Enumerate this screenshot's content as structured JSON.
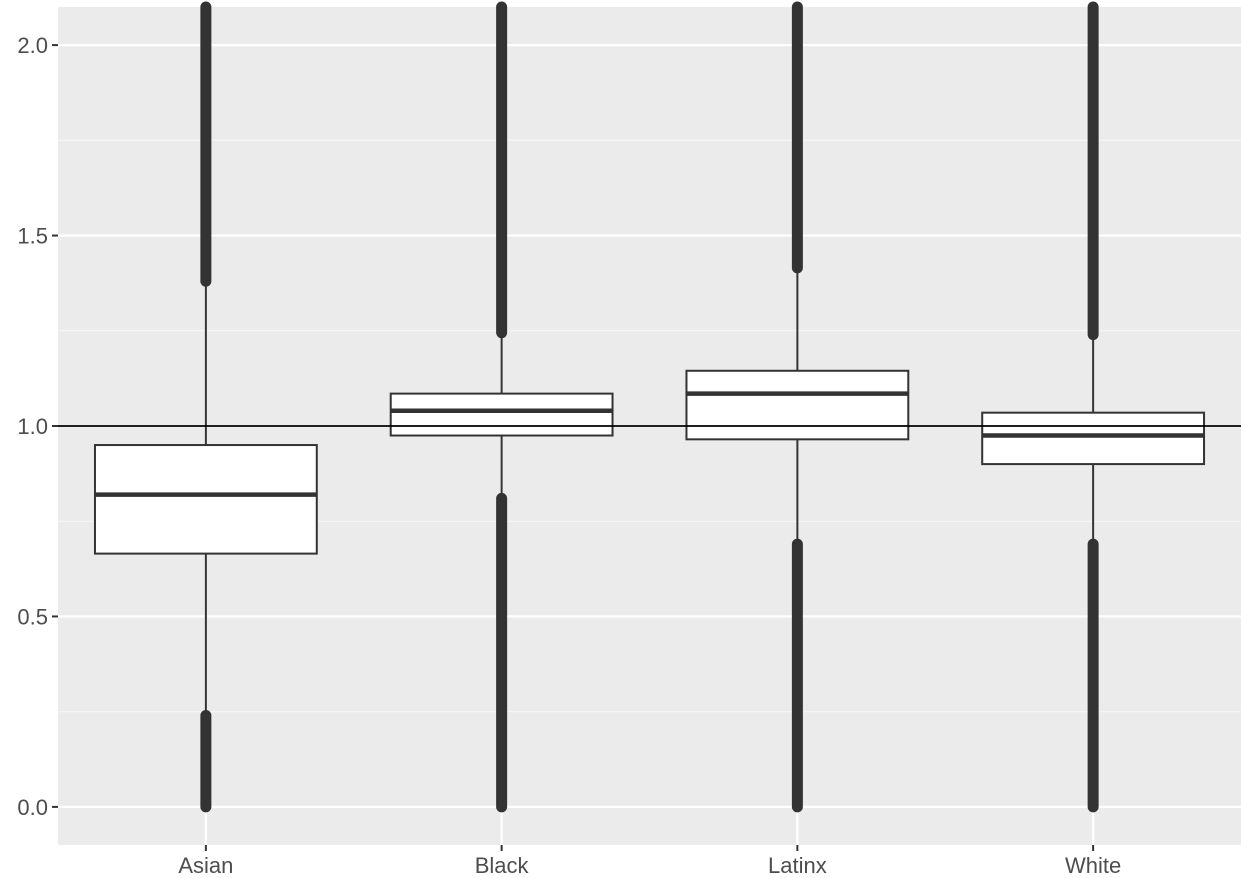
{
  "chart_data": {
    "type": "boxplot",
    "title": "",
    "xlabel": "",
    "ylabel": "",
    "categories": [
      "Asian",
      "Black",
      "Latinx",
      "White"
    ],
    "ylim": [
      -0.1,
      2.1
    ],
    "y_ticks": [
      {
        "value": 0.0,
        "label": "0.0"
      },
      {
        "value": 0.5,
        "label": "0.5"
      },
      {
        "value": 1.0,
        "label": "1.0"
      },
      {
        "value": 1.5,
        "label": "1.5"
      },
      {
        "value": 2.0,
        "label": "2.0"
      }
    ],
    "reference_line": 1.0,
    "grid": true,
    "legend": "none",
    "boxes": [
      {
        "category": "Asian",
        "q1": 0.665,
        "median": 0.82,
        "q3": 0.95,
        "whisker_low": 0.24,
        "whisker_high": 1.38,
        "outlier_ranges": [
          [
            0.0,
            0.24
          ],
          [
            1.38,
            2.1
          ]
        ]
      },
      {
        "category": "Black",
        "q1": 0.975,
        "median": 1.04,
        "q3": 1.085,
        "whisker_low": 0.81,
        "whisker_high": 1.245,
        "outlier_ranges": [
          [
            0.0,
            0.81
          ],
          [
            1.245,
            2.1
          ]
        ]
      },
      {
        "category": "Latinx",
        "q1": 0.965,
        "median": 1.085,
        "q3": 1.145,
        "whisker_low": 0.69,
        "whisker_high": 1.415,
        "outlier_ranges": [
          [
            0.0,
            0.69
          ],
          [
            1.415,
            2.1
          ]
        ]
      },
      {
        "category": "White",
        "q1": 0.9,
        "median": 0.975,
        "q3": 1.035,
        "whisker_low": 0.69,
        "whisker_high": 1.24,
        "outlier_ranges": [
          [
            0.0,
            0.69
          ],
          [
            1.24,
            2.1
          ]
        ]
      }
    ],
    "colors": {
      "panel_background": "#ebebeb",
      "grid_major": "#ffffff",
      "grid_minor": "#f5f5f5",
      "box_fill": "#ffffff",
      "box_stroke": "#333333",
      "outlier": "#333333",
      "reference_line": "#000000",
      "tick_text": "#4d4d4d"
    }
  }
}
